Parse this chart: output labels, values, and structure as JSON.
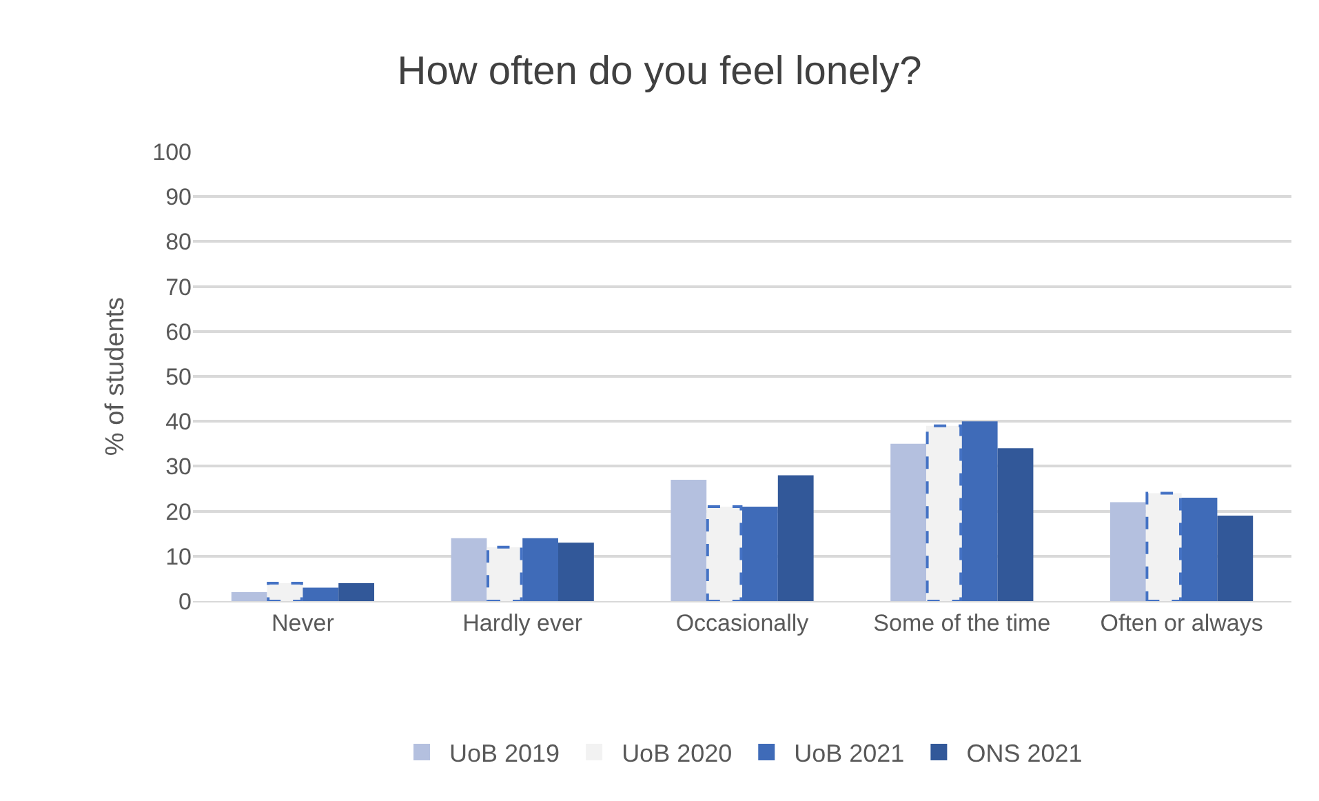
{
  "chart_data": {
    "type": "bar",
    "title": "How often do you feel lonely?",
    "ylabel": "% of students",
    "categories": [
      "Never",
      "Hardly ever",
      "Occasionally",
      "Some of the time",
      "Often or always"
    ],
    "series": [
      {
        "name": "UoB 2019",
        "color": "#b4c0df",
        "values": [
          2,
          14,
          27,
          35,
          22
        ]
      },
      {
        "name": "UoB 2020",
        "color": "#f2f2f2",
        "line_style": "dashed",
        "values": [
          4,
          12,
          21,
          39,
          24
        ]
      },
      {
        "name": "UoB 2021",
        "color": "#3f6bb8",
        "values": [
          3,
          14,
          21,
          40,
          23
        ]
      },
      {
        "name": "ONS 2021",
        "color": "#325899",
        "values": [
          4,
          13,
          28,
          34,
          19
        ]
      }
    ],
    "ylim": [
      0,
      100
    ],
    "yticks": [
      0,
      10,
      20,
      30,
      40,
      50,
      60,
      70,
      80,
      90,
      100
    ],
    "grid": "y",
    "legend": "bottom"
  }
}
